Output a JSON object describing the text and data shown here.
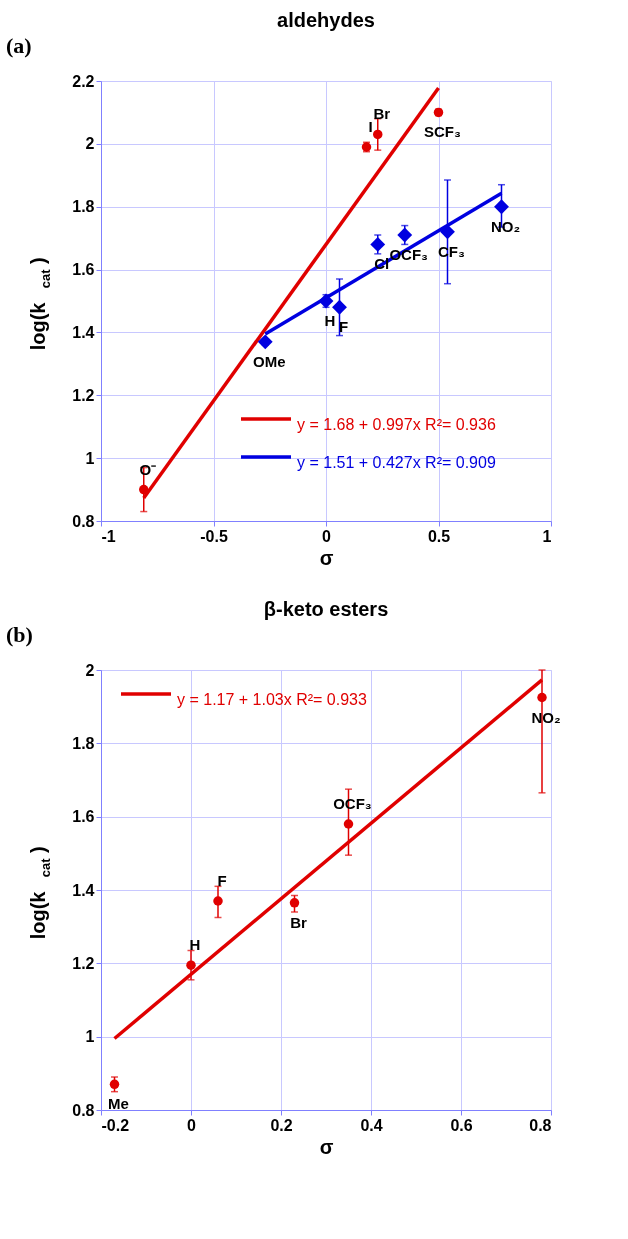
{
  "chart_data": [
    {
      "type": "scatter",
      "title": "aldehydes",
      "xlabel": "σ",
      "ylabel": "log(k$_{cat}$)",
      "xlim": [
        -1,
        1
      ],
      "xticks": [
        -1,
        -0.5,
        0,
        0.5,
        1
      ],
      "ylim": [
        0.8,
        2.2
      ],
      "yticks": [
        0.8,
        1,
        1.2,
        1.4,
        1.6,
        1.8,
        2,
        2.2
      ],
      "grid": true,
      "legend": "bottom right",
      "annotations": [
        "(a)",
        {
          "text": "O⁻",
          "x": -0.81,
          "y": 0.9
        },
        {
          "text": "I",
          "x": 0.18,
          "y": 1.99
        },
        {
          "text": "Br",
          "x": 0.23,
          "y": 2.03
        },
        {
          "text": "SCF₃",
          "x": 0.5,
          "y": 2.1
        },
        {
          "text": "OCF₃",
          "x": 0.35,
          "y": 1.71
        },
        {
          "text": "CF₃",
          "x": 0.54,
          "y": 1.72
        },
        {
          "text": "NO₂",
          "x": 0.78,
          "y": 1.8
        },
        {
          "text": "Cl",
          "x": 0.23,
          "y": 1.68
        },
        {
          "text": "H",
          "x": 0,
          "y": 1.5
        },
        {
          "text": "F",
          "x": 0.06,
          "y": 1.48
        },
        {
          "text": "OMe",
          "x": -0.27,
          "y": 1.37
        }
      ],
      "series": [
        {
          "name": "y = 1.68 + 0.997x   R²= 0.936",
          "type": "line",
          "color": "#e00000",
          "marker": "none",
          "x": [
            -0.81,
            0.5
          ],
          "values": [
            0.873,
            2.178
          ]
        },
        {
          "color": "#e00000",
          "marker": "circle",
          "x": [
            -0.81,
            0.18,
            0.23,
            0.5
          ],
          "values": [
            0.9,
            1.99,
            2.03,
            2.1
          ],
          "errors": [
            [
              0.83,
              0.97
            ],
            [
              1.975,
              2.005
            ],
            [
              1.98,
              2.08
            ],
            [
              2.09,
              2.11
            ]
          ]
        },
        {
          "name": "y = 1.51 + 0.427x   R²= 0.909",
          "type": "line",
          "color": "#0000e0",
          "marker": "none",
          "x": [
            -0.27,
            0.78
          ],
          "values": [
            1.395,
            1.843
          ]
        },
        {
          "color": "#0000e0",
          "marker": "diamond",
          "x": [
            -0.27,
            0,
            0.06,
            0.23,
            0.35,
            0.54,
            0.78
          ],
          "values": [
            1.37,
            1.5,
            1.48,
            1.68,
            1.71,
            1.72,
            1.8
          ],
          "errors": [
            [
              1.36,
              1.38
            ],
            [
              1.48,
              1.52
            ],
            [
              1.39,
              1.57
            ],
            [
              1.65,
              1.71
            ],
            [
              1.68,
              1.74
            ],
            [
              1.555,
              1.885
            ],
            [
              1.735,
              1.87
            ]
          ]
        }
      ]
    },
    {
      "type": "scatter",
      "title": "β-keto esters",
      "xlabel": "σ",
      "ylabel": "log(k$_{cat}$)",
      "xlim": [
        -0.2,
        0.8
      ],
      "xticks": [
        -0.2,
        0,
        0.2,
        0.4,
        0.6,
        0.8
      ],
      "ylim": [
        0.8,
        2
      ],
      "yticks": [
        0.8,
        1,
        1.2,
        1.4,
        1.6,
        1.8,
        2
      ],
      "grid": true,
      "legend": "top left",
      "annotations": [
        "(b)",
        {
          "text": "Me",
          "x": -0.17,
          "y": 0.87
        },
        {
          "text": "H",
          "x": 0,
          "y": 1.195
        },
        {
          "text": "F",
          "x": 0.06,
          "y": 1.37
        },
        {
          "text": "Br",
          "x": 0.23,
          "y": 1.365
        },
        {
          "text": "OCF₃",
          "x": 0.35,
          "y": 1.58
        },
        {
          "text": "NO₂",
          "x": 0.78,
          "y": 1.925
        }
      ],
      "series": [
        {
          "name": "y = 1.17 + 1.03x   R²= 0.933",
          "type": "line",
          "color": "#e00000",
          "marker": "none",
          "x": [
            -0.17,
            0.78
          ],
          "values": [
            0.995,
            1.973
          ]
        },
        {
          "color": "#e00000",
          "marker": "circle",
          "x": [
            -0.17,
            0,
            0.06,
            0.23,
            0.35,
            0.78
          ],
          "values": [
            0.87,
            1.195,
            1.37,
            1.365,
            1.58,
            1.925
          ],
          "errors": [
            [
              0.85,
              0.89
            ],
            [
              1.155,
              1.235
            ],
            [
              1.325,
              1.41
            ],
            [
              1.34,
              1.385
            ],
            [
              1.495,
              1.675
            ],
            [
              1.665,
              2.0
            ]
          ]
        }
      ]
    }
  ]
}
